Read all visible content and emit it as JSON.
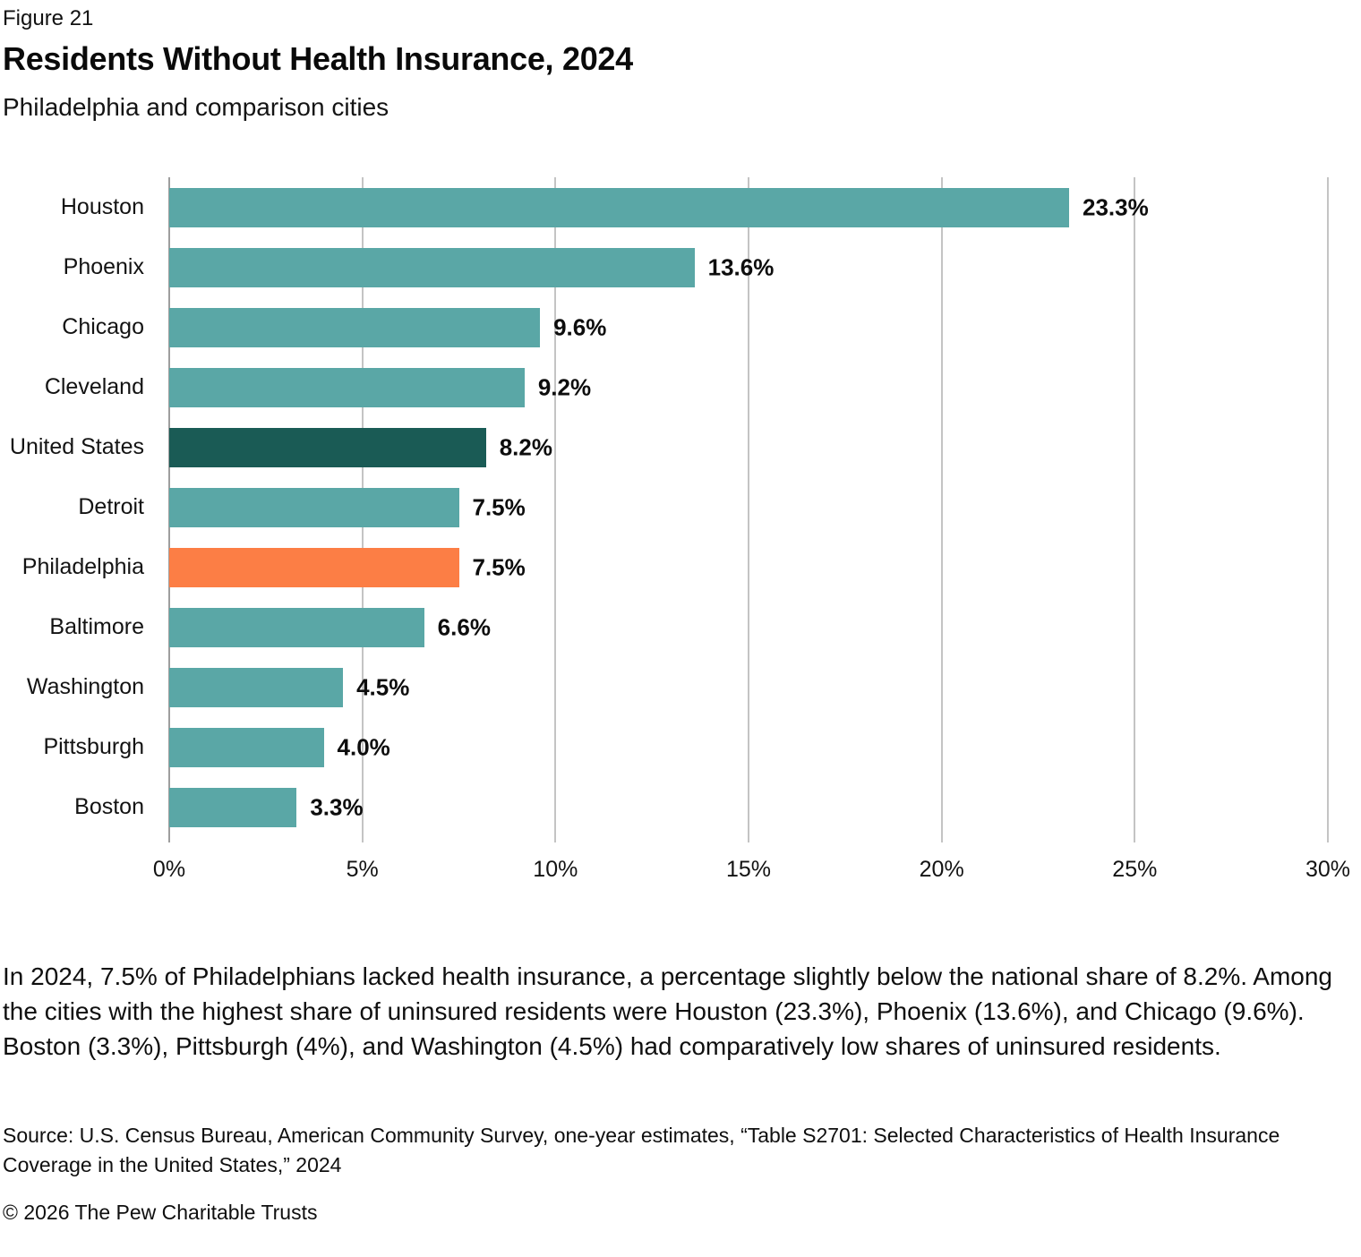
{
  "header": {
    "figure_label": "Figure 21",
    "title": "Residents Without Health Insurance, 2024",
    "subtitle": "Philadelphia and comparison cities"
  },
  "chart_data": {
    "type": "bar",
    "orientation": "horizontal",
    "categories": [
      "Houston",
      "Phoenix",
      "Chicago",
      "Cleveland",
      "United States",
      "Detroit",
      "Philadelphia",
      "Baltimore",
      "Washington",
      "Pittsburgh",
      "Boston"
    ],
    "values": [
      23.3,
      13.6,
      9.6,
      9.2,
      8.2,
      7.5,
      7.5,
      6.6,
      4.5,
      4.0,
      3.3
    ],
    "value_labels": [
      "23.3%",
      "13.6%",
      "9.6%",
      "9.2%",
      "8.2%",
      "7.5%",
      "7.5%",
      "6.6%",
      "4.5%",
      "4.0%",
      "3.3%"
    ],
    "bar_colors": [
      "#5AA7A6",
      "#5AA7A6",
      "#5AA7A6",
      "#5AA7A6",
      "#1A5B55",
      "#5AA7A6",
      "#FC7E45",
      "#5AA7A6",
      "#5AA7A6",
      "#5AA7A6",
      "#5AA7A6"
    ],
    "colors": {
      "default_bar": "#5AA7A6",
      "united_states_highlight": "#1A5B55",
      "philadelphia_highlight": "#FC7E45",
      "gridline": "#c4c4c4",
      "axis_line": "#9e9e9e"
    },
    "xlim": [
      0,
      30
    ],
    "x_ticks": [
      "0%",
      "5%",
      "10%",
      "15%",
      "20%",
      "25%",
      "30%"
    ],
    "grid": "vertical",
    "legend": "none"
  },
  "caption": "In 2024, 7.5% of Philadelphians lacked health insurance, a percentage slightly below the national share of 8.2%. Among the cities with the highest share of uninsured residents were Houston (23.3%), Phoenix (13.6%), and Chicago (9.6%). Boston (3.3%), Pittsburgh (4%), and Washington (4.5%) had comparatively low shares of uninsured residents.",
  "source": "Source: U.S. Census Bureau, American Community Survey, one-year estimates, “Table S2701: Selected Characteristics of Health Insurance Coverage in the United States,” 2024",
  "copyright": "© 2026 The Pew Charitable Trusts"
}
